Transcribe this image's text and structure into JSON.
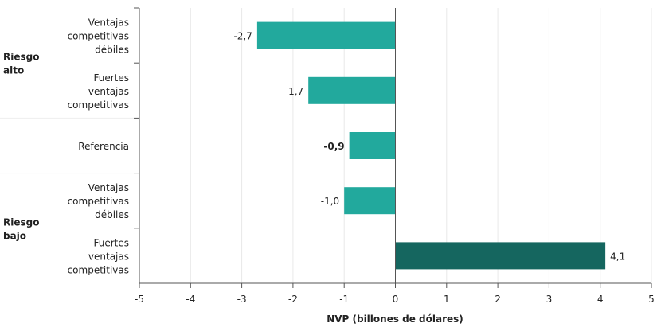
{
  "chart_data": {
    "type": "bar",
    "orientation": "horizontal",
    "groups": [
      {
        "label": "Riesgo alto",
        "label_lines": [
          "Riesgo",
          "alto"
        ],
        "categories": [
          0,
          1
        ]
      },
      {
        "label": "Riesgo bajo",
        "label_lines": [
          "Riesgo",
          "bajo"
        ],
        "categories": [
          3,
          4
        ]
      }
    ],
    "categories": [
      {
        "label_lines": [
          "Ventajas",
          "competitivas",
          "débiles"
        ],
        "value": -2.7,
        "value_label": "-2,7",
        "bold": false,
        "color": "#22a99d"
      },
      {
        "label_lines": [
          "Fuertes",
          "ventajas",
          "competitivas"
        ],
        "value": -1.7,
        "value_label": "-1,7",
        "bold": false,
        "color": "#22a99d"
      },
      {
        "label_lines": [
          "Referencia"
        ],
        "value": -0.9,
        "value_label": "-0,9",
        "bold": true,
        "color": "#22a99d"
      },
      {
        "label_lines": [
          "Ventajas",
          "competitivas",
          "débiles"
        ],
        "value": -1.0,
        "value_label": "-1,0",
        "bold": false,
        "color": "#22a99d"
      },
      {
        "label_lines": [
          "Fuertes",
          "ventajas",
          "competitivas"
        ],
        "value": 4.1,
        "value_label": "4,1",
        "bold": false,
        "color": "#15665f"
      }
    ],
    "xlabel": "NVP (billones de dólares)",
    "xlim": [
      -5,
      5
    ],
    "xticks": [
      -5,
      -4,
      -3,
      -2,
      -1,
      0,
      1,
      2,
      3,
      4,
      5
    ],
    "xtick_labels": [
      "-5",
      "-4",
      "-3",
      "-2",
      "-1",
      "0",
      "1",
      "2",
      "3",
      "4",
      "5"
    ],
    "grid": "vertical"
  }
}
